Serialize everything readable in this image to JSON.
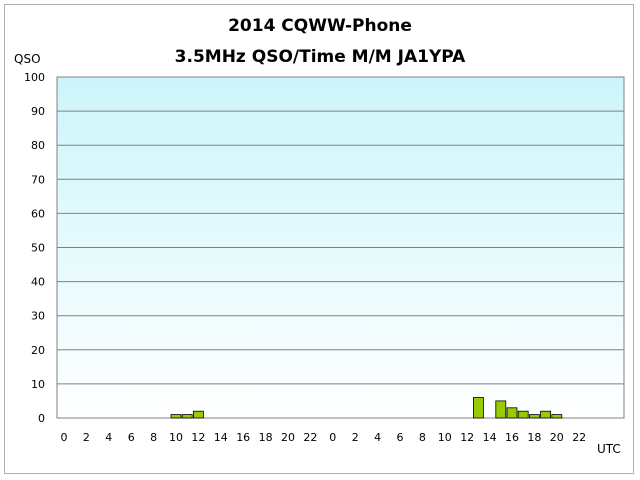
{
  "chart_data": {
    "type": "bar",
    "title": "2014  CQWW-Phone",
    "subtitle": "3.5MHz QSO/Time  M/M JA1YPA",
    "ylabel": "QSO",
    "xlabel": "UTC",
    "ylim": [
      0,
      100
    ],
    "yticks": [
      0,
      10,
      20,
      30,
      40,
      50,
      60,
      70,
      80,
      90,
      100
    ],
    "grid": true,
    "colors": {
      "bar": "#99cc00",
      "bar_edge": "#000000",
      "plot_top": "#ccf5fa",
      "plot_bottom": "#ffffff",
      "grid": "#808080"
    },
    "x_tick_labels": [
      "0",
      "2",
      "4",
      "6",
      "8",
      "10",
      "12",
      "14",
      "16",
      "18",
      "20",
      "22",
      "0",
      "2",
      "4",
      "6",
      "8",
      "10",
      "12",
      "14",
      "16",
      "18",
      "20",
      "22"
    ],
    "hours": [
      0,
      1,
      2,
      3,
      4,
      5,
      6,
      7,
      8,
      9,
      10,
      11,
      12,
      13,
      14,
      15,
      16,
      17,
      18,
      19,
      20,
      21,
      22,
      23,
      0,
      1,
      2,
      3,
      4,
      5,
      6,
      7,
      8,
      9,
      10,
      11,
      12,
      13,
      14,
      15,
      16,
      17,
      18,
      19,
      20,
      21,
      22,
      23
    ],
    "values": [
      0,
      0,
      0,
      0,
      0,
      0,
      0,
      0,
      0,
      0,
      1,
      1,
      2,
      0,
      0,
      0,
      0,
      0,
      0,
      0,
      0,
      0,
      0,
      0,
      0,
      0,
      0,
      0,
      0,
      0,
      0,
      0,
      0,
      0,
      0,
      0,
      0,
      6,
      0,
      5,
      3,
      2,
      1,
      2,
      1,
      0,
      0,
      0
    ]
  }
}
